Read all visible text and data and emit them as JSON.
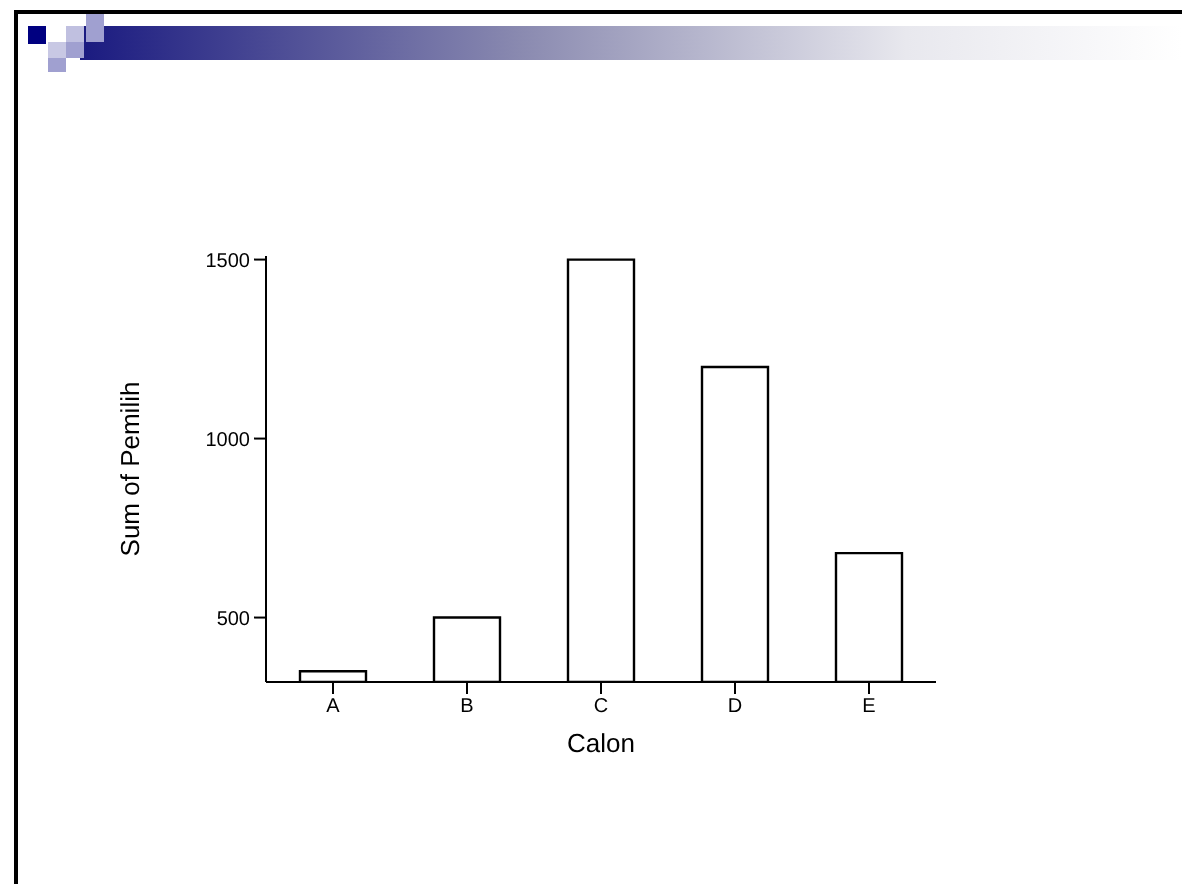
{
  "chart_data": {
    "type": "bar",
    "xlabel": "Calon",
    "ylabel": "Sum of Pemilih",
    "categories": [
      "A",
      "B",
      "C",
      "D",
      "E"
    ],
    "values": [
      350,
      500,
      1500,
      1200,
      680
    ],
    "color": "#ffffff",
    "ylim": [
      320,
      1510
    ],
    "yticks": [
      500,
      1000,
      1500
    ],
    "grid": false,
    "legend": false
  }
}
